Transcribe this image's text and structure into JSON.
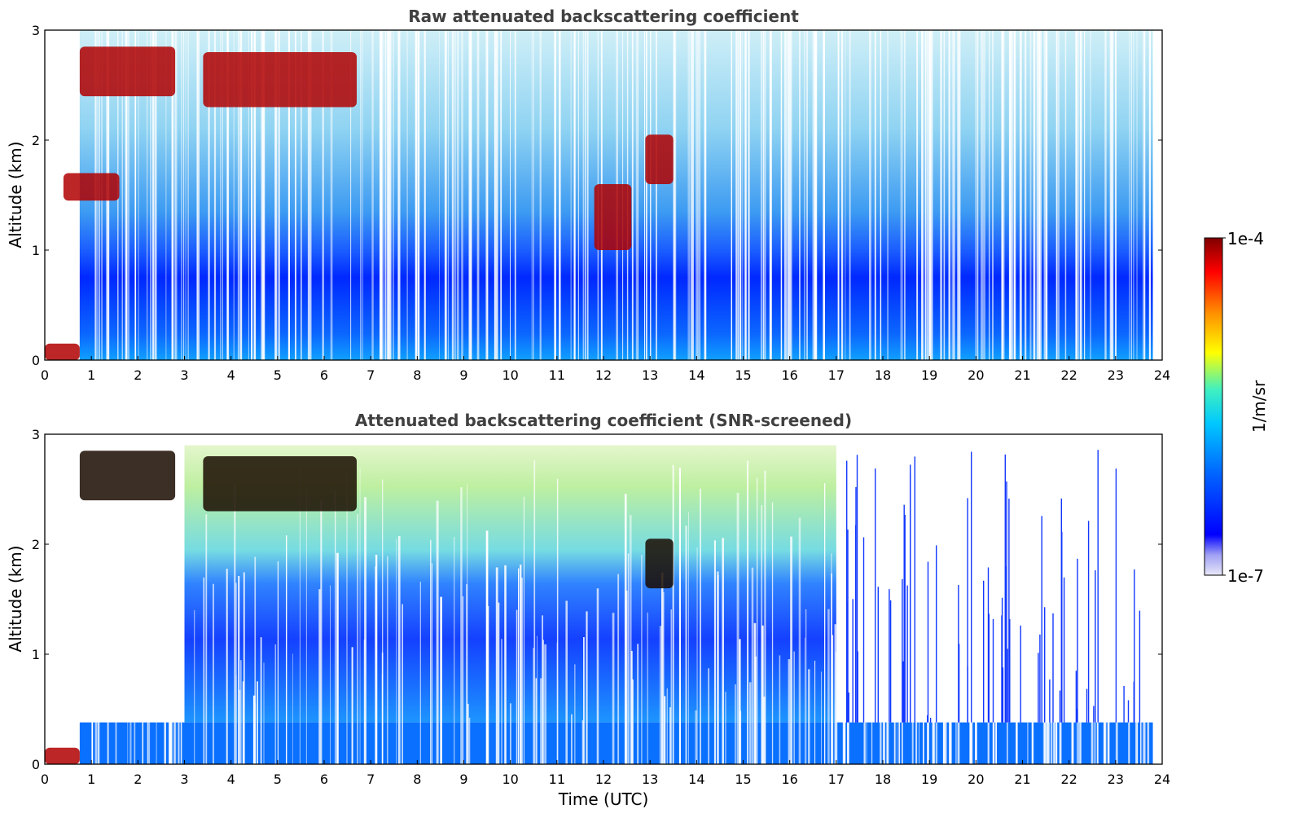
{
  "chart_data": [
    {
      "type": "heatmap",
      "title": "Raw attenuated backscattering coefficient",
      "xlabel": "",
      "ylabel": "Altitude (km)",
      "xlim": [
        0,
        24
      ],
      "ylim": [
        0,
        3
      ],
      "x_ticks": [
        "0",
        "1",
        "2",
        "3",
        "4",
        "5",
        "6",
        "7",
        "8",
        "9",
        "10",
        "11",
        "12",
        "13",
        "14",
        "15",
        "16",
        "17",
        "18",
        "19",
        "20",
        "21",
        "22",
        "23",
        "24"
      ],
      "y_ticks": [
        "0",
        "1",
        "2",
        "3"
      ],
      "features": [
        {
          "kind": "surface_layer",
          "x": [
            0,
            0.75
          ],
          "y": [
            0,
            0.15
          ],
          "level": "high"
        },
        {
          "kind": "aerosol_layer",
          "x": [
            0,
            24
          ],
          "y": [
            0,
            1.0
          ],
          "level": "medium"
        },
        {
          "kind": "cloud",
          "x": [
            0.75,
            2.8
          ],
          "y": [
            2.4,
            2.85
          ],
          "level": "high"
        },
        {
          "kind": "cloud",
          "x": [
            3.4,
            6.7
          ],
          "y": [
            2.3,
            2.8
          ],
          "level": "high"
        },
        {
          "kind": "cloud",
          "x": [
            0.4,
            1.6
          ],
          "y": [
            1.45,
            1.7
          ],
          "level": "high"
        },
        {
          "kind": "cloud",
          "x": [
            11.8,
            12.6
          ],
          "y": [
            1.0,
            1.6
          ],
          "level": "high"
        },
        {
          "kind": "cloud",
          "x": [
            12.9,
            13.5
          ],
          "y": [
            1.6,
            2.05
          ],
          "level": "high"
        }
      ]
    },
    {
      "type": "heatmap",
      "title": "Attenuated backscattering coefficient (SNR-screened)",
      "xlabel": "Time (UTC)",
      "ylabel": "Altitude (km)",
      "xlim": [
        0,
        24
      ],
      "ylim": [
        0,
        3
      ],
      "x_ticks": [
        "0",
        "1",
        "2",
        "3",
        "4",
        "5",
        "6",
        "7",
        "8",
        "9",
        "10",
        "11",
        "12",
        "13",
        "14",
        "15",
        "16",
        "17",
        "18",
        "19",
        "20",
        "21",
        "22",
        "23",
        "24"
      ],
      "y_ticks": [
        "0",
        "1",
        "2",
        "3"
      ],
      "features": [
        {
          "kind": "surface_layer",
          "x": [
            0,
            0.75
          ],
          "y": [
            0,
            0.15
          ],
          "level": "high"
        },
        {
          "kind": "boundary_layer",
          "x": [
            0.75,
            23.8
          ],
          "y": [
            0,
            0.38
          ],
          "level": "medium"
        },
        {
          "kind": "aerosol_layer",
          "x": [
            3,
            17
          ],
          "y": [
            0.38,
            1.9
          ],
          "level": "medium"
        },
        {
          "kind": "cloud",
          "x": [
            0.75,
            2.8
          ],
          "y": [
            2.4,
            2.85
          ],
          "level": "saturated"
        },
        {
          "kind": "cloud",
          "x": [
            3.4,
            6.7
          ],
          "y": [
            2.3,
            2.8
          ],
          "level": "saturated"
        },
        {
          "kind": "cloud",
          "x": [
            12.9,
            13.5
          ],
          "y": [
            1.6,
            2.05
          ],
          "level": "saturated"
        }
      ]
    }
  ],
  "colorbar": {
    "label": "1/m/sr",
    "min_label": "1e-7",
    "max_label": "1e-4",
    "scale": "log",
    "colors": [
      "#e8e8f8",
      "#0000ff",
      "#00c8ff",
      "#ffff00",
      "#ff0000",
      "#800000"
    ]
  }
}
